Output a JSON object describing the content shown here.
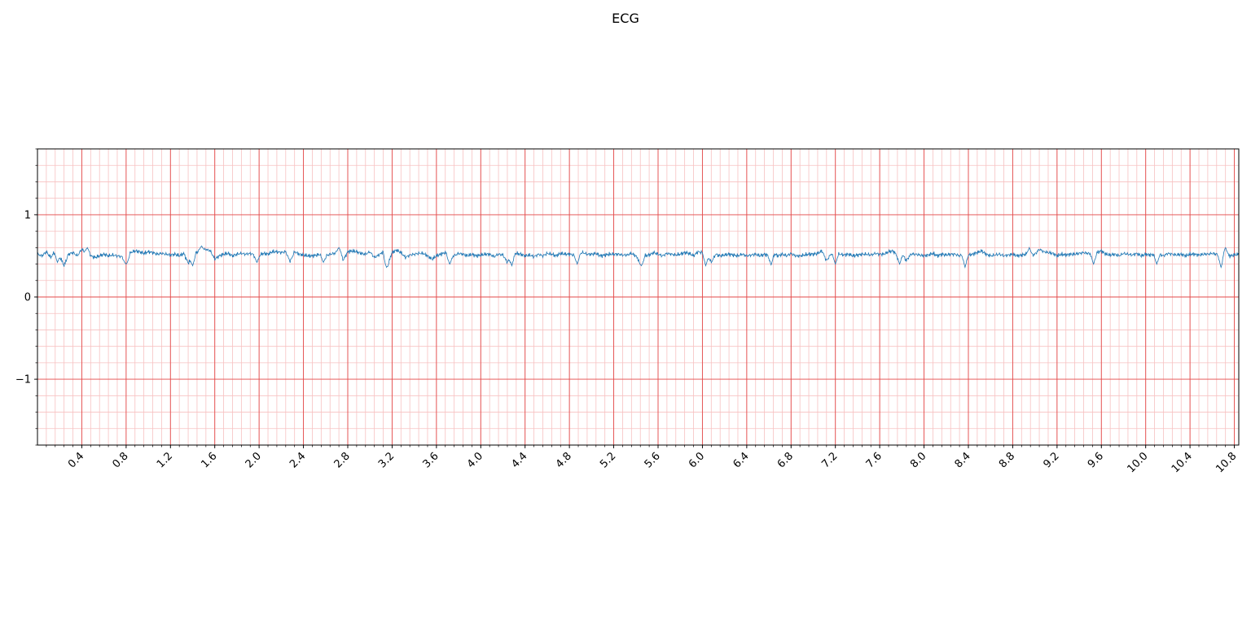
{
  "chart_data": {
    "type": "line",
    "title": "ECG",
    "xlabel": "",
    "ylabel": "",
    "xlim": [
      0.0,
      10.84
    ],
    "ylim": [
      -1.8,
      1.8
    ],
    "x_ticks": [
      0.4,
      0.8,
      1.2,
      1.6,
      2.0,
      2.4,
      2.8,
      3.2,
      3.6,
      4.0,
      4.4,
      4.8,
      5.2,
      5.6,
      6.0,
      6.4,
      6.8,
      7.2,
      7.6,
      8.0,
      8.4,
      8.8,
      9.2,
      9.6,
      10.0,
      10.4,
      10.8
    ],
    "x_tick_labels": [
      "0.4",
      "0.8",
      "1.2",
      "1.6",
      "2.0",
      "2.4",
      "2.8",
      "3.2",
      "3.6",
      "4.0",
      "4.4",
      "4.8",
      "5.2",
      "5.6",
      "6.0",
      "6.4",
      "6.8",
      "7.2",
      "7.6",
      "8.0",
      "8.4",
      "8.8",
      "9.2",
      "9.6",
      "10.0",
      "10.4",
      "10.8"
    ],
    "x_minor_step": 0.08,
    "y_ticks": [
      -1,
      0,
      1
    ],
    "y_tick_labels": [
      "−1",
      "0",
      "1"
    ],
    "y_minor_step": 0.2,
    "grid": true,
    "grid_major_color": "#e34a4a",
    "grid_minor_color": "#f7c1c1",
    "line_color": "#1f77b4",
    "series": [
      {
        "sample_step": 0.04,
        "values": [
          0.52,
          0.5,
          0.55,
          0.48,
          0.56,
          0.5,
          0.38,
          0.52,
          0.54,
          0.5,
          0.58,
          0.53,
          0.5,
          0.48,
          0.5,
          0.52,
          0.5,
          0.51,
          0.5,
          0.49,
          0.42,
          0.54,
          0.56,
          0.55,
          0.53,
          0.55,
          0.54,
          0.52,
          0.53,
          0.52,
          0.51,
          0.52,
          0.5,
          0.53,
          0.41,
          0.5,
          0.55,
          0.56,
          0.58,
          0.56,
          0.46,
          0.5,
          0.52,
          0.53,
          0.5,
          0.52,
          0.53,
          0.52,
          0.53,
          0.51,
          0.51,
          0.53,
          0.52,
          0.55,
          0.55,
          0.54,
          0.55,
          0.43,
          0.55,
          0.52,
          0.51,
          0.5,
          0.5,
          0.51,
          0.52,
          0.5,
          0.52,
          0.53,
          0.55,
          0.45,
          0.55,
          0.56,
          0.55,
          0.53,
          0.52,
          0.55,
          0.48,
          0.51,
          0.55,
          0.4,
          0.54,
          0.57,
          0.54,
          0.48,
          0.51,
          0.52,
          0.53,
          0.53,
          0.5,
          0.46,
          0.5,
          0.52,
          0.54,
          0.49,
          0.5,
          0.53,
          0.52,
          0.5,
          0.52,
          0.5,
          0.51,
          0.52,
          0.52,
          0.49,
          0.52,
          0.51,
          0.42,
          0.52,
          0.53,
          0.52,
          0.5,
          0.51,
          0.49,
          0.52,
          0.5,
          0.53,
          0.52,
          0.5,
          0.53,
          0.52,
          0.52,
          0.51,
          0.52,
          0.54,
          0.52,
          0.52,
          0.53,
          0.5,
          0.51,
          0.52,
          0.52,
          0.52,
          0.51,
          0.51,
          0.53,
          0.5,
          0.42,
          0.5,
          0.51,
          0.54,
          0.52,
          0.5,
          0.53,
          0.52,
          0.51,
          0.52,
          0.54,
          0.53,
          0.5,
          0.55,
          0.54,
          0.52,
          0.42,
          0.52,
          0.5,
          0.51,
          0.52,
          0.51,
          0.5,
          0.52,
          0.5,
          0.51,
          0.52,
          0.5,
          0.52,
          0.5,
          0.53,
          0.5,
          0.52,
          0.5,
          0.53,
          0.5,
          0.5,
          0.51,
          0.52,
          0.52,
          0.53,
          0.56,
          0.44,
          0.52,
          0.53,
          0.52,
          0.51,
          0.52,
          0.5,
          0.51,
          0.52,
          0.52,
          0.51,
          0.53,
          0.52,
          0.52,
          0.55,
          0.56,
          0.5,
          0.53,
          0.44,
          0.52,
          0.52,
          0.51,
          0.5,
          0.51,
          0.53,
          0.5,
          0.52,
          0.51,
          0.52,
          0.52,
          0.5,
          0.52,
          0.51,
          0.52,
          0.54,
          0.56,
          0.52,
          0.5,
          0.51,
          0.52,
          0.5,
          0.51,
          0.52,
          0.5,
          0.51,
          0.52,
          0.5,
          0.52,
          0.58,
          0.55,
          0.54,
          0.53,
          0.5,
          0.52,
          0.51,
          0.52,
          0.52,
          0.53,
          0.54,
          0.53,
          0.52,
          0.54,
          0.56,
          0.52,
          0.51,
          0.52,
          0.5,
          0.53,
          0.52,
          0.51,
          0.53,
          0.5,
          0.52,
          0.51,
          0.52,
          0.52,
          0.5,
          0.53,
          0.52,
          0.51,
          0.52,
          0.5,
          0.52,
          0.52,
          0.51,
          0.52,
          0.52,
          0.53,
          0.52,
          0.5,
          0.51,
          0.5,
          0.51,
          0.52,
          0.53,
          0.5,
          0.52,
          0.51,
          0.52,
          0.52,
          0.5,
          0.51,
          0.52,
          0.51,
          0.52
        ]
      }
    ],
    "spikes": [
      {
        "x": 0.18,
        "y": 0.42
      },
      {
        "x": 0.45,
        "y": 0.6
      },
      {
        "x": 0.8,
        "y": 0.4
      },
      {
        "x": 1.4,
        "y": 0.38
      },
      {
        "x": 1.48,
        "y": 0.62
      },
      {
        "x": 1.98,
        "y": 0.42
      },
      {
        "x": 2.58,
        "y": 0.42
      },
      {
        "x": 2.72,
        "y": 0.6
      },
      {
        "x": 3.15,
        "y": 0.36
      },
      {
        "x": 3.72,
        "y": 0.4
      },
      {
        "x": 4.28,
        "y": 0.38
      },
      {
        "x": 4.87,
        "y": 0.4
      },
      {
        "x": 5.45,
        "y": 0.38
      },
      {
        "x": 6.03,
        "y": 0.38
      },
      {
        "x": 6.62,
        "y": 0.39
      },
      {
        "x": 7.2,
        "y": 0.4
      },
      {
        "x": 7.78,
        "y": 0.4
      },
      {
        "x": 8.37,
        "y": 0.36
      },
      {
        "x": 8.95,
        "y": 0.6
      },
      {
        "x": 9.53,
        "y": 0.4
      },
      {
        "x": 10.1,
        "y": 0.4
      },
      {
        "x": 10.68,
        "y": 0.36
      },
      {
        "x": 10.72,
        "y": 0.6
      }
    ]
  }
}
